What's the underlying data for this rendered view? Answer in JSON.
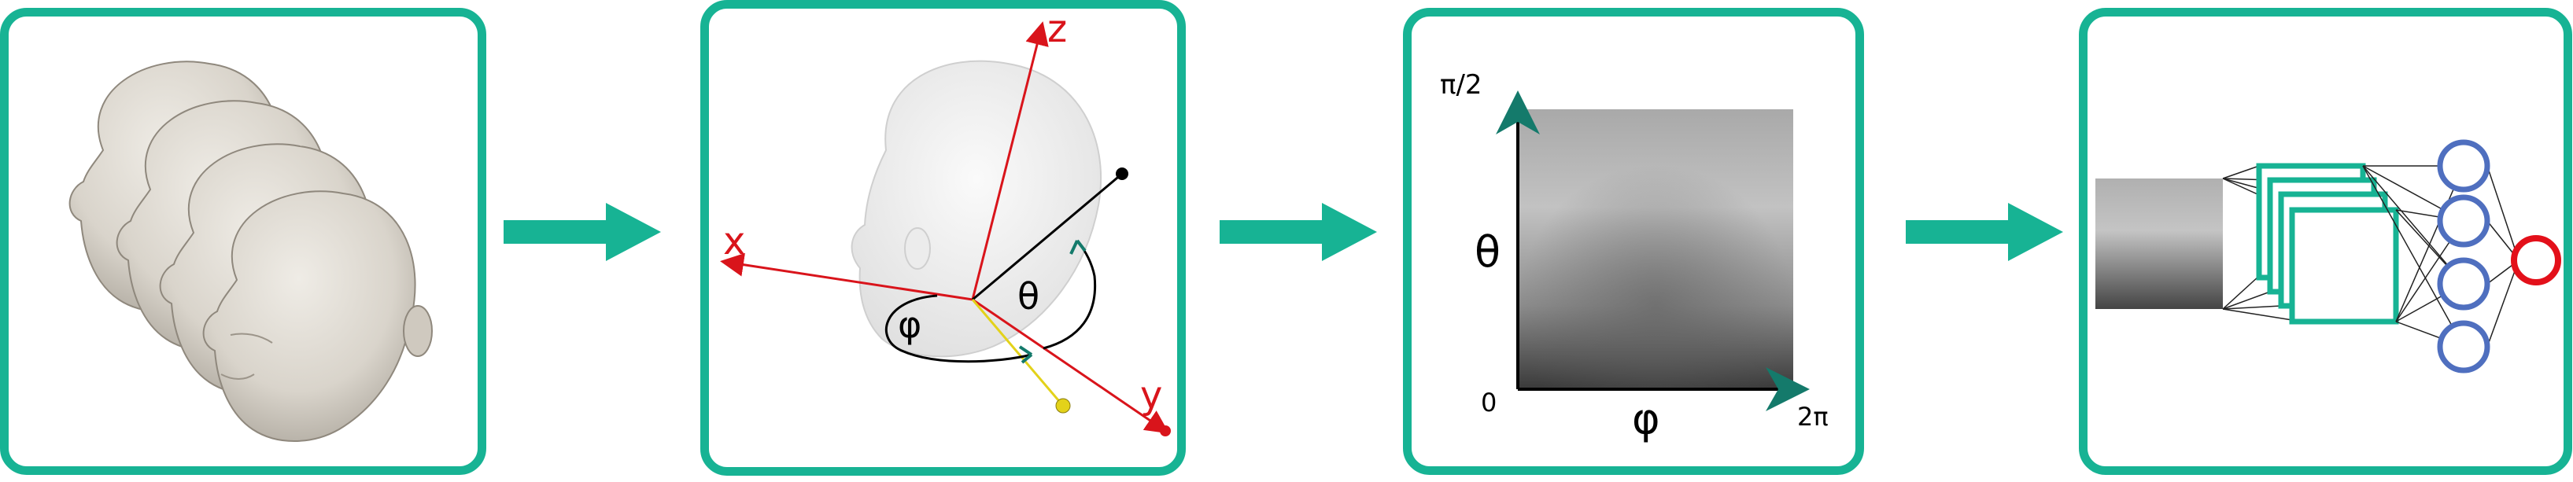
{
  "colors": {
    "panel_border": "#17b394",
    "flow_arrow": "#17b394",
    "axis_red": "#d9141b",
    "head_skin": "#dcd8d0",
    "neuron_blue": "#4f6fbf",
    "neuron_out_red": "#e3101a",
    "teal_dark": "#147a6b"
  },
  "panels": [
    {
      "name": "head-meshes",
      "description": "stack of 3D head models"
    },
    {
      "name": "spherical-coordinates"
    },
    {
      "name": "depth-map"
    },
    {
      "name": "neural-network"
    }
  ],
  "panel2": {
    "x_label": "x",
    "y_label": "y",
    "z_label": "z",
    "phi_label": "φ",
    "theta_label": "θ"
  },
  "panel3": {
    "theta_max": "π/2",
    "axis_origin": "0",
    "phi_max": "2π",
    "y_axis_label": "θ",
    "x_axis_label": "φ"
  },
  "panel4": {
    "conv_layers": 4,
    "hidden_neurons": 4,
    "output_neurons": 1
  }
}
